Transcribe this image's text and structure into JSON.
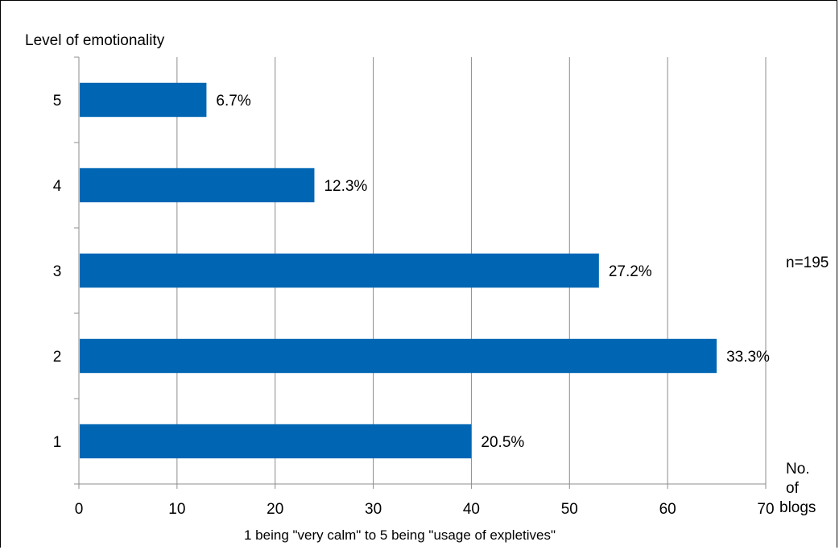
{
  "chart_data": {
    "type": "bar",
    "orientation": "horizontal",
    "categories": [
      "1",
      "2",
      "3",
      "4",
      "5"
    ],
    "values": [
      40,
      65,
      53,
      24,
      13
    ],
    "data_labels": [
      "20.5%",
      "33.3%",
      "27.2%",
      "12.3%",
      "6.7%"
    ],
    "x_ticks": [
      "0",
      "10",
      "20",
      "30",
      "40",
      "50",
      "60",
      "70"
    ],
    "xlim": [
      0,
      70
    ],
    "xlabel": "1 being \"very calm\" to 5 being \"usage of expletives\"",
    "ylabel": "Level of emotionality",
    "x_unit_label": [
      "No.",
      "of",
      "blogs"
    ],
    "annotation": "n=195",
    "grid": "vertical",
    "bar_color": "#0066b3",
    "grid_color": "#8c8c8c"
  }
}
